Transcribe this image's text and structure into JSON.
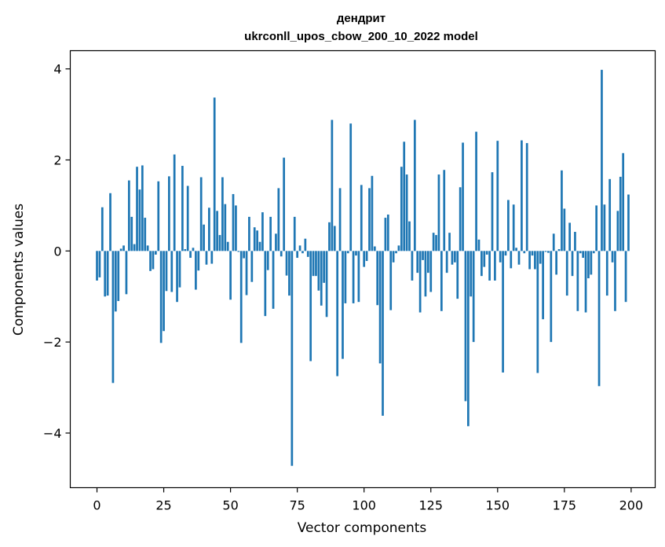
{
  "chart_data": {
    "type": "bar",
    "title": "дендрит",
    "subtitle": "ukrconll_upos_cbow_200_10_2022 model",
    "xlabel": "Vector components",
    "ylabel": "Components values",
    "xlim": [
      -10,
      209
    ],
    "ylim": [
      -5.2,
      4.4
    ],
    "xticks": [
      0,
      25,
      50,
      75,
      100,
      125,
      150,
      175,
      200
    ],
    "yticks": [
      -4,
      -2,
      0,
      2,
      4
    ],
    "ytick_labels": [
      "−4",
      "−2",
      "0",
      "2",
      "4"
    ],
    "grid": false,
    "bar_color": "#1f77b4",
    "x": [
      0,
      1,
      2,
      3,
      4,
      5,
      6,
      7,
      8,
      9,
      10,
      11,
      12,
      13,
      14,
      15,
      16,
      17,
      18,
      19,
      20,
      21,
      22,
      23,
      24,
      25,
      26,
      27,
      28,
      29,
      30,
      31,
      32,
      33,
      34,
      35,
      36,
      37,
      38,
      39,
      40,
      41,
      42,
      43,
      44,
      45,
      46,
      47,
      48,
      49,
      50,
      51,
      52,
      53,
      54,
      55,
      56,
      57,
      58,
      59,
      60,
      61,
      62,
      63,
      64,
      65,
      66,
      67,
      68,
      69,
      70,
      71,
      72,
      73,
      74,
      75,
      76,
      77,
      78,
      79,
      80,
      81,
      82,
      83,
      84,
      85,
      86,
      87,
      88,
      89,
      90,
      91,
      92,
      93,
      94,
      95,
      96,
      97,
      98,
      99,
      100,
      101,
      102,
      103,
      104,
      105,
      106,
      107,
      108,
      109,
      110,
      111,
      112,
      113,
      114,
      115,
      116,
      117,
      118,
      119,
      120,
      121,
      122,
      123,
      124,
      125,
      126,
      127,
      128,
      129,
      130,
      131,
      132,
      133,
      134,
      135,
      136,
      137,
      138,
      139,
      140,
      141,
      142,
      143,
      144,
      145,
      146,
      147,
      148,
      149,
      150,
      151,
      152,
      153,
      154,
      155,
      156,
      157,
      158,
      159,
      160,
      161,
      162,
      163,
      164,
      165,
      166,
      167,
      168,
      169,
      170,
      171,
      172,
      173,
      174,
      175,
      176,
      177,
      178,
      179,
      180,
      181,
      182,
      183,
      184,
      185,
      186,
      187,
      188,
      189,
      190,
      191,
      192,
      193,
      194,
      195,
      196,
      197,
      198,
      199
    ],
    "values": [
      -0.65,
      -0.58,
      0.96,
      -1.0,
      -0.98,
      1.27,
      -2.9,
      -1.33,
      -1.1,
      0.05,
      0.12,
      -0.95,
      1.55,
      0.75,
      0.15,
      1.85,
      1.35,
      1.88,
      0.73,
      0.12,
      -0.44,
      -0.4,
      -0.08,
      1.53,
      -2.02,
      -1.76,
      -0.88,
      1.64,
      -0.9,
      2.12,
      -1.12,
      -0.8,
      1.87,
      0.04,
      1.43,
      -0.15,
      0.07,
      -0.85,
      -0.43,
      1.62,
      0.58,
      -0.3,
      0.95,
      -0.28,
      3.37,
      0.88,
      0.35,
      1.62,
      1.03,
      0.2,
      -1.07,
      1.25,
      1.0,
      -0.02,
      -2.02,
      -0.16,
      -0.97,
      0.75,
      -0.68,
      0.52,
      0.45,
      0.2,
      0.85,
      -1.43,
      -0.42,
      0.75,
      -1.27,
      0.38,
      1.38,
      -0.12,
      2.05,
      -0.54,
      -0.98,
      -4.72,
      0.75,
      -0.15,
      0.12,
      -0.05,
      0.27,
      -0.13,
      -2.42,
      -0.55,
      -0.55,
      -0.87,
      -1.2,
      -0.7,
      -1.45,
      0.63,
      2.88,
      0.55,
      -2.75,
      1.38,
      -2.37,
      -1.15,
      -0.05,
      2.8,
      -1.15,
      -0.1,
      -1.12,
      1.45,
      -0.35,
      -0.22,
      1.38,
      1.65,
      0.1,
      -1.19,
      -2.47,
      -3.62,
      0.73,
      0.8,
      -1.3,
      -0.25,
      -0.05,
      0.12,
      1.85,
      2.4,
      1.68,
      0.65,
      -0.65,
      2.88,
      -0.48,
      -1.35,
      -0.2,
      -1.0,
      -0.48,
      -0.9,
      0.4,
      0.35,
      1.68,
      -1.32,
      1.78,
      -0.48,
      0.4,
      -0.3,
      -0.25,
      -1.05,
      1.4,
      2.38,
      -3.3,
      -3.85,
      -1.0,
      -2.0,
      2.62,
      0.25,
      -0.55,
      -0.35,
      -0.08,
      -0.65,
      1.73,
      -0.65,
      2.42,
      -0.25,
      -2.67,
      -0.1,
      1.12,
      -0.38,
      1.02,
      0.07,
      -0.3,
      2.43,
      -0.05,
      2.37,
      -0.4,
      -0.1,
      -0.4,
      -2.68,
      -0.28,
      -1.5,
      -0.02,
      -0.04,
      -2.0,
      0.38,
      -0.52,
      0.04,
      1.77,
      0.93,
      -0.98,
      0.62,
      -0.55,
      0.42,
      -1.32,
      -0.05,
      -0.15,
      -1.35,
      -0.6,
      -0.52,
      -0.05,
      1.0,
      -2.97,
      3.98,
      1.02,
      -0.98,
      1.58,
      -0.25,
      -1.32,
      0.88,
      1.63,
      2.15,
      -1.12,
      1.24
    ]
  }
}
